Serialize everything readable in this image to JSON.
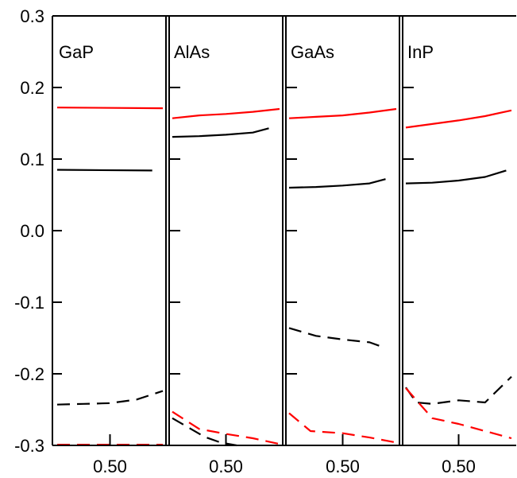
{
  "chart_data": {
    "type": "line",
    "title": "",
    "xlabel": "",
    "ylabel": "",
    "ylim": [
      -0.3,
      0.3
    ],
    "yticks": [
      "0.3",
      "0.2",
      "0.1",
      "0.0",
      "-0.1",
      "-0.2",
      "-0.3"
    ],
    "grid": false,
    "legend": "none",
    "colors": {
      "red": "#ff0000",
      "black": "#000000"
    },
    "panels": [
      {
        "label": "GaP",
        "xtick": "0.50",
        "series": [
          {
            "color": "red",
            "dash": "solid",
            "x": [
              0.0,
              1.0
            ],
            "y": [
              0.172,
              0.171
            ]
          },
          {
            "color": "black",
            "dash": "solid",
            "x": [
              0.0,
              0.9
            ],
            "y": [
              0.085,
              0.084
            ]
          },
          {
            "color": "black",
            "dash": "dashed",
            "x": [
              0.0,
              0.25,
              0.5,
              0.75,
              1.0
            ],
            "y": [
              -0.243,
              -0.242,
              -0.241,
              -0.236,
              -0.224
            ]
          },
          {
            "color": "red",
            "dash": "dashed",
            "x": [
              0.0,
              0.25,
              0.5,
              0.75,
              1.0
            ],
            "y": [
              -0.299,
              -0.299,
              -0.299,
              -0.299,
              -0.299
            ]
          }
        ]
      },
      {
        "label": "AlAs",
        "xtick": "0.50",
        "series": [
          {
            "color": "red",
            "dash": "solid",
            "x": [
              0.0,
              0.25,
              0.5,
              0.75,
              1.0
            ],
            "y": [
              0.157,
              0.161,
              0.163,
              0.166,
              0.17
            ]
          },
          {
            "color": "black",
            "dash": "solid",
            "x": [
              0.0,
              0.25,
              0.5,
              0.75,
              0.9
            ],
            "y": [
              0.131,
              0.132,
              0.134,
              0.137,
              0.143
            ]
          },
          {
            "color": "black",
            "dash": "dashed",
            "x": [
              0.0,
              0.15,
              0.3,
              0.45,
              0.6
            ],
            "y": [
              -0.262,
              -0.275,
              -0.288,
              -0.296,
              -0.3
            ]
          },
          {
            "color": "red",
            "dash": "dashed",
            "x": [
              0.0,
              0.25,
              0.5,
              0.75,
              1.0
            ],
            "y": [
              -0.253,
              -0.277,
              -0.284,
              -0.29,
              -0.298
            ]
          }
        ]
      },
      {
        "label": "GaAs",
        "xtick": "0.50",
        "series": [
          {
            "color": "red",
            "dash": "solid",
            "x": [
              0.0,
              0.25,
              0.5,
              0.75,
              1.0
            ],
            "y": [
              0.157,
              0.159,
              0.161,
              0.165,
              0.17
            ]
          },
          {
            "color": "black",
            "dash": "solid",
            "x": [
              0.0,
              0.25,
              0.5,
              0.75,
              0.9
            ],
            "y": [
              0.06,
              0.061,
              0.063,
              0.066,
              0.072
            ]
          },
          {
            "color": "black",
            "dash": "dashed",
            "x": [
              0.0,
              0.25,
              0.5,
              0.75,
              0.9
            ],
            "y": [
              -0.136,
              -0.147,
              -0.152,
              -0.156,
              -0.164
            ]
          },
          {
            "color": "red",
            "dash": "dashed",
            "x": [
              0.0,
              0.2,
              0.5,
              0.75,
              1.0
            ],
            "y": [
              -0.255,
              -0.28,
              -0.283,
              -0.289,
              -0.296
            ]
          }
        ]
      },
      {
        "label": "InP",
        "xtick": "0.50",
        "series": [
          {
            "color": "red",
            "dash": "solid",
            "x": [
              0.0,
              0.25,
              0.5,
              0.75,
              1.0
            ],
            "y": [
              0.144,
              0.149,
              0.154,
              0.16,
              0.168
            ]
          },
          {
            "color": "black",
            "dash": "solid",
            "x": [
              0.0,
              0.25,
              0.5,
              0.75,
              0.95
            ],
            "y": [
              0.066,
              0.067,
              0.07,
              0.075,
              0.084
            ]
          },
          {
            "color": "black",
            "dash": "dashed",
            "x": [
              0.0,
              0.1,
              0.25,
              0.5,
              0.75,
              1.0
            ],
            "y": [
              -0.219,
              -0.24,
              -0.242,
              -0.237,
              -0.24,
              -0.204
            ]
          },
          {
            "color": "red",
            "dash": "dashed",
            "x": [
              0.0,
              0.25,
              0.5,
              0.75,
              1.0
            ],
            "y": [
              -0.22,
              -0.262,
              -0.27,
              -0.28,
              -0.29
            ]
          }
        ]
      }
    ]
  }
}
